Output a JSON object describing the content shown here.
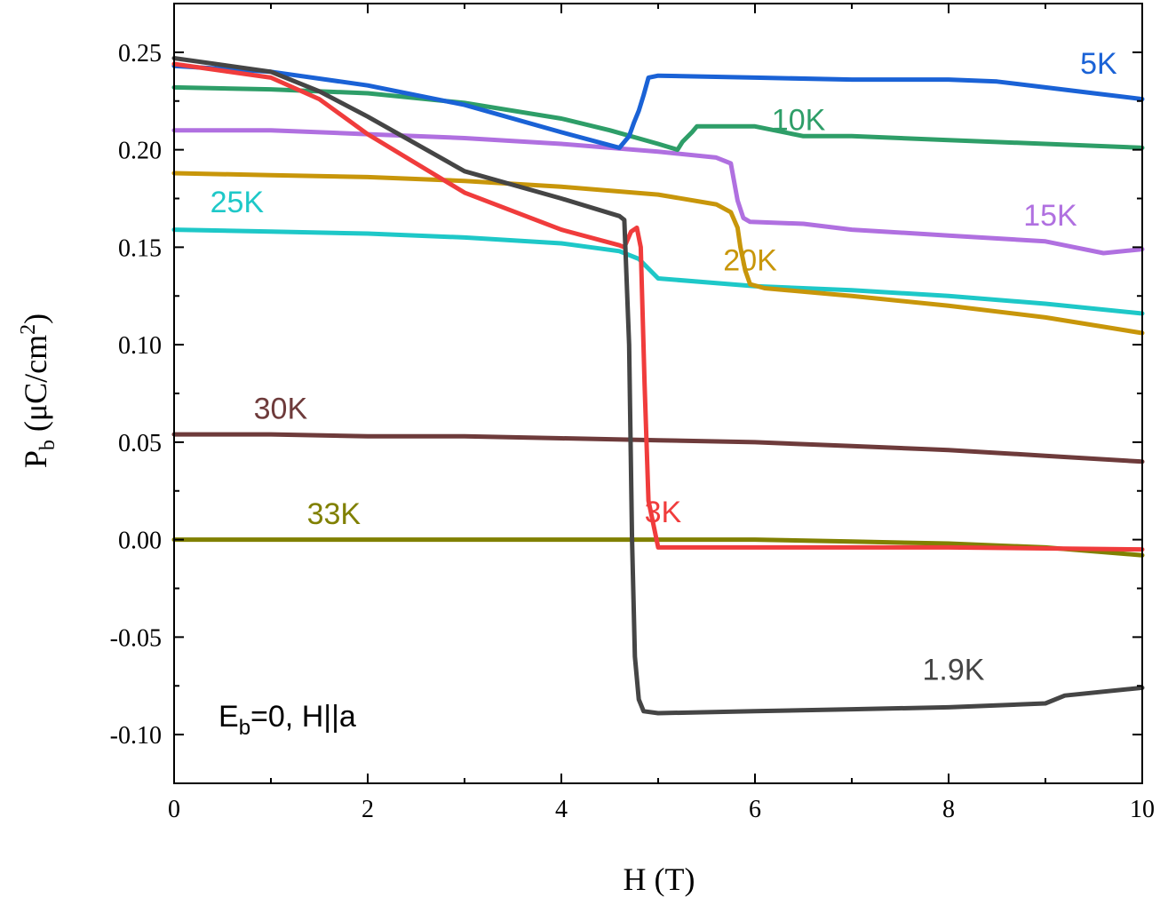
{
  "chart_data": {
    "type": "line",
    "title": "",
    "xlabel": "H (T)",
    "ylabel": {
      "main": "P",
      "sub": "b",
      "units_start": " (μC/cm",
      "units_sup": "2",
      "units_end": ")"
    },
    "annotation": {
      "main": "E",
      "sub": "b",
      "rest": "=0, H||a"
    },
    "xlim": [
      0,
      10
    ],
    "ylim": [
      -0.125,
      0.275
    ],
    "xticks": [
      0,
      2,
      4,
      6,
      8,
      10
    ],
    "xtick_labels": [
      "0",
      "2",
      "4",
      "6",
      "8",
      "10"
    ],
    "yticks": [
      -0.1,
      -0.05,
      0.0,
      0.05,
      0.1,
      0.15,
      0.2,
      0.25
    ],
    "ytick_labels": [
      "-0.10",
      "-0.05",
      "0.00",
      "0.05",
      "0.10",
      "0.15",
      "0.20",
      "0.25"
    ],
    "grid": false,
    "series": [
      {
        "name": "33K",
        "color": "#808000",
        "x": [
          0,
          2,
          4,
          6,
          7,
          8,
          9,
          10
        ],
        "y": [
          0.0,
          0.0,
          0.0,
          0.0,
          -0.001,
          -0.002,
          -0.004,
          -0.008
        ]
      },
      {
        "name": "30K",
        "color": "#6e3b3b",
        "x": [
          0,
          1,
          2,
          3,
          4,
          5,
          6,
          7,
          8,
          9,
          10
        ],
        "y": [
          0.054,
          0.054,
          0.053,
          0.053,
          0.052,
          0.051,
          0.05,
          0.048,
          0.046,
          0.043,
          0.04
        ]
      },
      {
        "name": "25K",
        "color": "#1ec8c8",
        "x": [
          0,
          1,
          2,
          3,
          4,
          4.6,
          4.8,
          4.9,
          5.0,
          6,
          7,
          8,
          9,
          10
        ],
        "y": [
          0.159,
          0.158,
          0.157,
          0.155,
          0.152,
          0.148,
          0.144,
          0.139,
          0.134,
          0.13,
          0.128,
          0.125,
          0.121,
          0.116
        ]
      },
      {
        "name": "20K",
        "color": "#c8960a",
        "x": [
          0,
          1,
          2,
          3,
          4,
          5,
          5.6,
          5.75,
          5.82,
          5.85,
          5.9,
          5.95,
          6.1,
          7,
          8,
          9,
          10
        ],
        "y": [
          0.188,
          0.187,
          0.186,
          0.184,
          0.181,
          0.177,
          0.172,
          0.168,
          0.16,
          0.15,
          0.138,
          0.131,
          0.129,
          0.125,
          0.12,
          0.114,
          0.106
        ]
      },
      {
        "name": "15K",
        "color": "#b070e0",
        "x": [
          0,
          1,
          2,
          3,
          4,
          5,
          5.6,
          5.75,
          5.78,
          5.82,
          5.88,
          5.95,
          6.5,
          7,
          8,
          9,
          9.3,
          9.6,
          10
        ],
        "y": [
          0.21,
          0.21,
          0.208,
          0.206,
          0.203,
          0.199,
          0.196,
          0.193,
          0.185,
          0.174,
          0.165,
          0.163,
          0.162,
          0.159,
          0.156,
          0.153,
          0.15,
          0.147,
          0.149
        ]
      },
      {
        "name": "10K",
        "color": "#2e9e68",
        "x": [
          0,
          1,
          2,
          3,
          4,
          4.5,
          5.0,
          5.2,
          5.25,
          5.35,
          5.4,
          5.5,
          6,
          6.5,
          7,
          8,
          9,
          10
        ],
        "y": [
          0.232,
          0.231,
          0.229,
          0.224,
          0.216,
          0.21,
          0.203,
          0.2,
          0.204,
          0.209,
          0.212,
          0.212,
          0.212,
          0.207,
          0.207,
          0.205,
          0.203,
          0.201
        ]
      },
      {
        "name": "5K",
        "color": "#1a62d6",
        "x": [
          0,
          1,
          2,
          3,
          4,
          4.6,
          4.7,
          4.75,
          4.8,
          4.85,
          4.9,
          5.0,
          6,
          7,
          8,
          8.5,
          9,
          9.5,
          10
        ],
        "y": [
          0.243,
          0.24,
          0.233,
          0.223,
          0.209,
          0.201,
          0.207,
          0.214,
          0.22,
          0.228,
          0.237,
          0.238,
          0.237,
          0.236,
          0.236,
          0.235,
          0.232,
          0.229,
          0.226
        ]
      },
      {
        "name": "3K",
        "color": "#f03c3c",
        "x": [
          0,
          1,
          1.5,
          2,
          3,
          4,
          4.6,
          4.65,
          4.72,
          4.78,
          4.82,
          4.86,
          4.9,
          5.0,
          6,
          8,
          10
        ],
        "y": [
          0.244,
          0.237,
          0.226,
          0.208,
          0.178,
          0.159,
          0.151,
          0.15,
          0.158,
          0.16,
          0.15,
          0.08,
          0.02,
          -0.004,
          -0.004,
          -0.004,
          -0.005
        ]
      },
      {
        "name": "1.9K",
        "color": "#454545",
        "x": [
          0,
          1,
          1.5,
          2,
          3,
          4,
          4.6,
          4.65,
          4.7,
          4.73,
          4.76,
          4.8,
          4.85,
          5.0,
          6,
          7,
          8,
          9.0,
          9.2,
          10
        ],
        "y": [
          0.247,
          0.24,
          0.23,
          0.217,
          0.189,
          0.175,
          0.166,
          0.164,
          0.1,
          0.0,
          -0.06,
          -0.082,
          -0.088,
          -0.089,
          -0.088,
          -0.087,
          -0.086,
          -0.084,
          -0.08,
          -0.076
        ]
      }
    ],
    "labels": [
      {
        "text": "5K",
        "series": "5K",
        "x": 9.55,
        "y": 0.239
      },
      {
        "text": "10K",
        "series": "10K",
        "x": 6.45,
        "y": 0.21
      },
      {
        "text": "15K",
        "series": "15K",
        "x": 9.05,
        "y": 0.161
      },
      {
        "text": "20K",
        "series": "20K",
        "x": 5.95,
        "y": 0.138
      },
      {
        "text": "25K",
        "series": "25K",
        "x": 0.65,
        "y": 0.168
      },
      {
        "text": "30K",
        "series": "30K",
        "x": 1.1,
        "y": 0.062
      },
      {
        "text": "33K",
        "series": "33K",
        "x": 1.65,
        "y": 0.008
      },
      {
        "text": "3K",
        "series": "3K",
        "x": 5.05,
        "y": 0.009
      },
      {
        "text": "1.9K",
        "series": "1.9K",
        "x": 8.05,
        "y": -0.072
      }
    ]
  }
}
